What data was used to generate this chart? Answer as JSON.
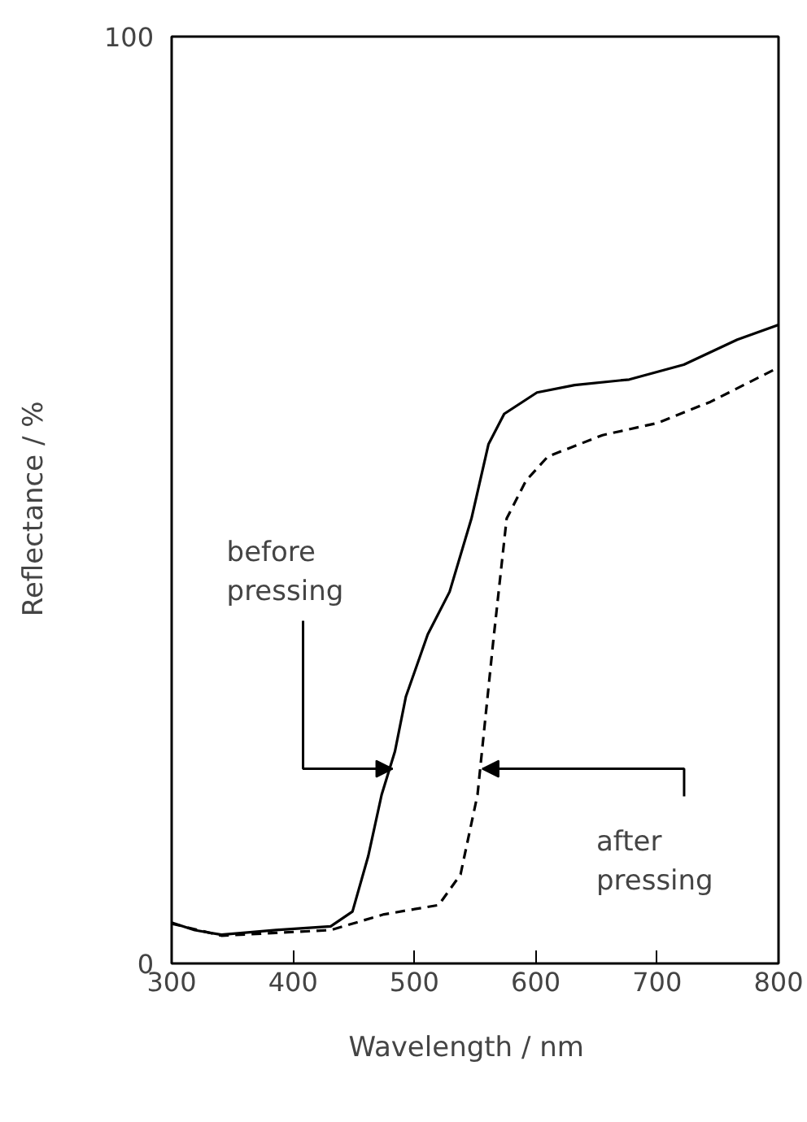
{
  "chart_data": {
    "type": "line",
    "xlabel": "Wavelength  /  nm",
    "ylabel": "Reflectance  /  %",
    "xlim": [
      300,
      800
    ],
    "ylim": [
      0,
      100
    ],
    "xticks": [
      300,
      400,
      500,
      600,
      700,
      800
    ],
    "yticks": [
      0,
      100
    ],
    "grid": false,
    "series": [
      {
        "color": "#000000",
        "line_style": "solid",
        "x": [
          300,
          319,
          341,
          386,
          431,
          449,
          462,
          473,
          484,
          493,
          511,
          529,
          547,
          561,
          574,
          601,
          632,
          677,
          722,
          766,
          800
        ],
        "values": [
          4.4,
          3.6,
          3.1,
          3.6,
          4.0,
          5.6,
          11.6,
          18.2,
          22.9,
          28.8,
          35.5,
          40.1,
          48,
          56,
          59.3,
          61.6,
          62.4,
          63,
          64.6,
          67.3,
          68.9
        ]
      },
      {
        "color": "#000000",
        "line_style": "dashed",
        "x": [
          300,
          341,
          386,
          431,
          475,
          520,
          538,
          552,
          565,
          576,
          592,
          610,
          655,
          700,
          744,
          800
        ],
        "values": [
          4.3,
          3.0,
          3.3,
          3.6,
          5.3,
          6.3,
          9.6,
          18.2,
          34.8,
          48,
          52.1,
          54.7,
          57,
          58.3,
          60.6,
          64.3
        ]
      }
    ],
    "annotations": [
      {
        "text": "before\npressing",
        "x": 482,
        "y": 21
      },
      {
        "text": "after\npressing",
        "x": 556,
        "y": 21
      }
    ]
  }
}
